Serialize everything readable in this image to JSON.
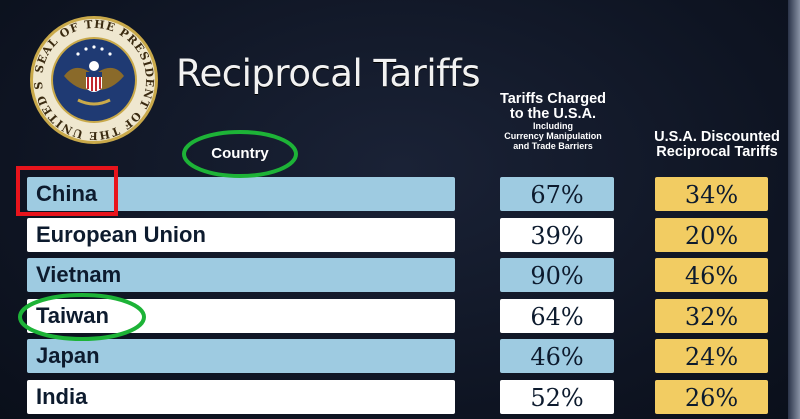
{
  "title": "Reciprocal Tariffs",
  "seal": {
    "outer_text": "SEAL OF THE PRESIDENT OF THE UNITED STATES"
  },
  "headers": {
    "country": "Country",
    "charged_main": "Tariffs Charged to the U.S.A.",
    "charged_line1": "Tariffs Charged",
    "charged_line2": "to the U.S.A.",
    "charged_sub1": "Including",
    "charged_sub2": "Currency Manipulation",
    "charged_sub3": "and Trade Barriers",
    "discounted_line1": "U.S.A. Discounted",
    "discounted_line2": "Reciprocal Tariffs"
  },
  "chart_data": {
    "type": "table",
    "title": "Reciprocal Tariffs",
    "columns": [
      "Country",
      "Tariffs Charged to the U.S.A. Including Currency Manipulation and Trade Barriers",
      "U.S.A. Discounted Reciprocal Tariffs"
    ],
    "rows": [
      {
        "country": "China",
        "charged": "67%",
        "discounted": "34%"
      },
      {
        "country": "European Union",
        "charged": "39%",
        "discounted": "20%"
      },
      {
        "country": "Vietnam",
        "charged": "90%",
        "discounted": "46%"
      },
      {
        "country": "Taiwan",
        "charged": "64%",
        "discounted": "32%"
      },
      {
        "country": "Japan",
        "charged": "46%",
        "discounted": "24%"
      },
      {
        "country": "India",
        "charged": "52%",
        "discounted": "26%"
      }
    ]
  },
  "annotations": {
    "highlight_box_color": "#e8141c",
    "highlight_ellipse_color": "#1db337"
  },
  "colors": {
    "background": "#111827",
    "row_blue": "#9ecbe1",
    "row_white": "#ffffff",
    "discount_gold": "#f2cc62",
    "text_dark": "#0d1b2e"
  }
}
